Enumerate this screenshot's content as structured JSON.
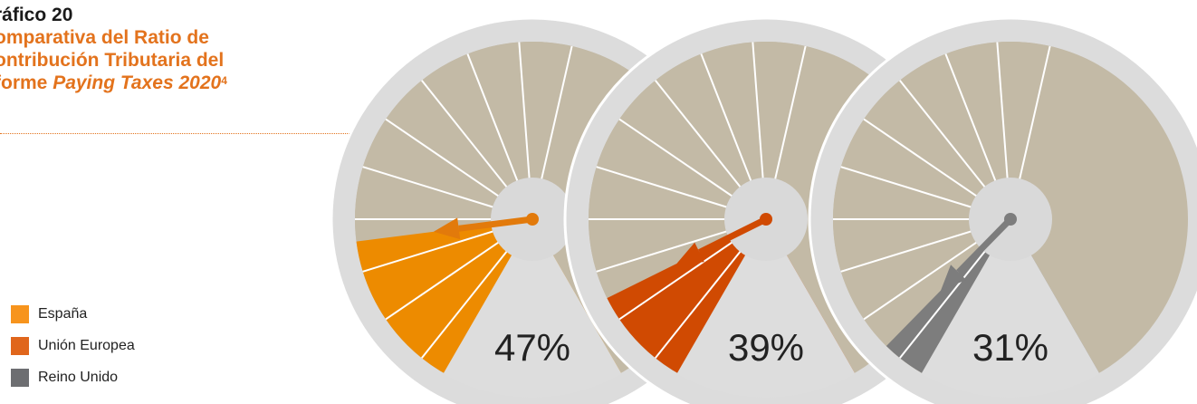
{
  "title": {
    "label": "ráfico 20",
    "lines": [
      "omparativa del Ratio de",
      "ontribución Tributaria del"
    ],
    "last_prefix": "forme ",
    "last_italic": "Paying Taxes 2020",
    "last_sup": "4"
  },
  "legend": [
    {
      "label": "España",
      "color": "#f7941d"
    },
    {
      "label": "Unión Europea",
      "color": "#e0661c"
    },
    {
      "label": "Reino Unido",
      "color": "#6d6e71"
    }
  ],
  "colors": {
    "ring": "#dcdcdc",
    "segment_bg": "#c3baa6",
    "segment_line": "#ffffff",
    "hub": "#d9d9d9",
    "bottom": "#dddddd"
  },
  "chart_data": {
    "type": "gauge",
    "title": "",
    "segments_per_gauge": 14,
    "gauges": [
      {
        "name": "España",
        "value": 47,
        "label": "47%",
        "fill": "#ed8b00",
        "needle": "#e27a0b"
      },
      {
        "name": "Unión Europea",
        "value": 39,
        "label": "39%",
        "fill": "#d04a02",
        "needle": "#d04a02"
      },
      {
        "name": "Reino Unido",
        "value": 31,
        "label": "31%",
        "fill": "#7d7d7d",
        "needle": "#7d7d7d"
      }
    ]
  }
}
